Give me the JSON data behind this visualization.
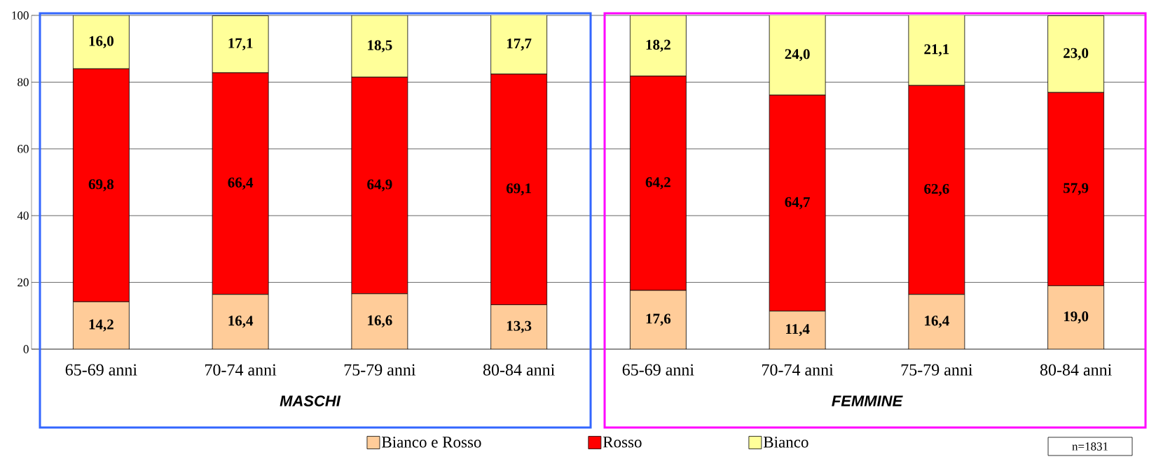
{
  "chart_data": {
    "type": "bar",
    "stacked": true,
    "categories": [
      "65-69 anni",
      "70-74 anni",
      "75-79 anni",
      "80-84 anni",
      "65-69 anni",
      "70-74 anni",
      "75-79 anni",
      "80-84 anni"
    ],
    "series": [
      {
        "name": "Bianco e Rosso",
        "color": "#ffcc99",
        "values": [
          14.2,
          16.4,
          16.6,
          13.3,
          17.6,
          11.4,
          16.4,
          19.0
        ],
        "value_labels": [
          "14,2",
          "16,4",
          "16,6",
          "13,3",
          "17,6",
          "11,4",
          "16,4",
          "19,0"
        ]
      },
      {
        "name": "Rosso",
        "color": "#ff0000",
        "values": [
          69.8,
          66.4,
          64.9,
          69.1,
          64.2,
          64.7,
          62.6,
          57.9
        ],
        "value_labels": [
          "69,8",
          "66,4",
          "64,9",
          "69,1",
          "64,2",
          "64,7",
          "62,6",
          "57,9"
        ]
      },
      {
        "name": "Bianco",
        "color": "#ffff99",
        "values": [
          16.0,
          17.1,
          18.5,
          17.7,
          18.2,
          24.0,
          21.1,
          23.0
        ],
        "value_labels": [
          "16,0",
          "17,1",
          "18,5",
          "17,7",
          "18,2",
          "24,0",
          "21,1",
          "23,0"
        ]
      }
    ],
    "ylim": [
      0,
      100
    ],
    "yticks": [
      0,
      20,
      40,
      60,
      80,
      100
    ],
    "grid": "y",
    "legend": "bottom",
    "annotations": [
      "MASCHI",
      "FEMMINE",
      "n=1831"
    ]
  }
}
